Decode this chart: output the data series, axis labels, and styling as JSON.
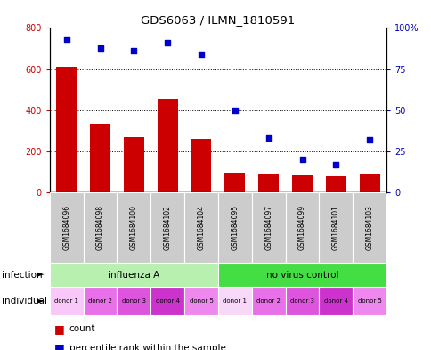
{
  "title": "GDS6063 / ILMN_1810591",
  "samples": [
    "GSM1684096",
    "GSM1684098",
    "GSM1684100",
    "GSM1684102",
    "GSM1684104",
    "GSM1684095",
    "GSM1684097",
    "GSM1684099",
    "GSM1684101",
    "GSM1684103"
  ],
  "counts": [
    610,
    335,
    270,
    455,
    260,
    95,
    90,
    85,
    80,
    90
  ],
  "percentiles": [
    93,
    88,
    86,
    91,
    84,
    50,
    33,
    20,
    17,
    32
  ],
  "count_color": "#cc0000",
  "percentile_color": "#0000cc",
  "ylim_left": [
    0,
    800
  ],
  "yticks_left": [
    0,
    200,
    400,
    600,
    800
  ],
  "yticks_right": [
    0,
    25,
    50,
    75,
    100
  ],
  "infection_groups": [
    {
      "label": "influenza A",
      "start": 0,
      "end": 5,
      "color": "#b8f0b0"
    },
    {
      "label": "no virus control",
      "start": 5,
      "end": 10,
      "color": "#44dd44"
    }
  ],
  "individual_colors": [
    "#f5b8f0",
    "#e880e8",
    "#dd66dd",
    "#cc44cc",
    "#ee99ee",
    "#f5c8f5",
    "#e880e8",
    "#dd66dd",
    "#cc44cc",
    "#ee99ee"
  ],
  "individual_labels": [
    "donor 1",
    "donor 2",
    "donor 3",
    "donor 4",
    "donor 5",
    "donor 1",
    "donor 2",
    "donor 3",
    "donor 4",
    "donor 5"
  ],
  "sample_bg_color": "#cccccc",
  "count_color_hex": "#cc0000",
  "percentile_color_hex": "#0000cc",
  "left_axis_color": "#cc0000",
  "right_axis_color": "#0000bb"
}
